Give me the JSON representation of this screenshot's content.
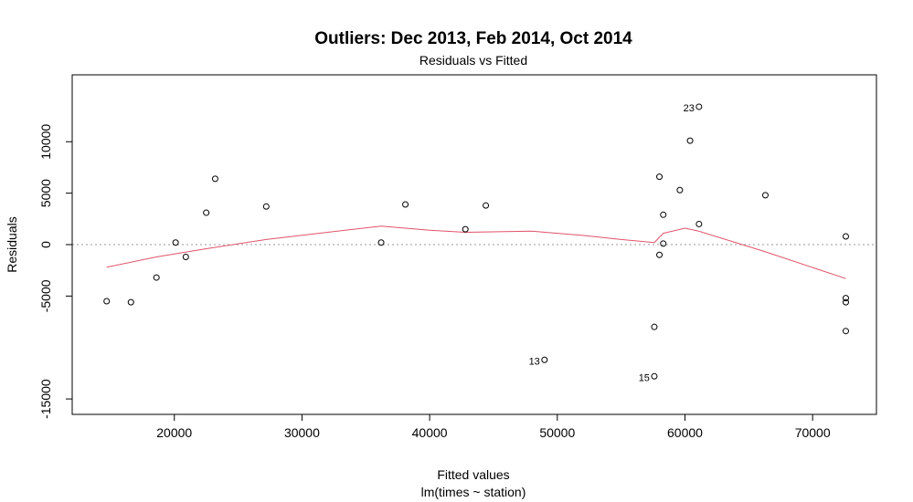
{
  "chart_data": {
    "type": "scatter",
    "title": "Outliers: Dec 2013, Feb 2014, Oct 2014",
    "subtitle": "Residuals vs Fitted",
    "xlabel": "Fitted values",
    "xlabel2": "lm(times ~ station)",
    "ylabel": "Residuals",
    "xlim": [
      12000,
      75000
    ],
    "ylim": [
      -16500,
      16500
    ],
    "x_ticks": [
      20000,
      30000,
      40000,
      50000,
      60000,
      70000
    ],
    "y_ticks": [
      -15000,
      -5000,
      0,
      5000,
      10000
    ],
    "y_tick_labels": [
      "-15000",
      "-5000",
      "0",
      "5000",
      "10000"
    ],
    "zero_line": true,
    "colors": {
      "points": "#000000",
      "smooth": "#DF536B",
      "zero_line": "#999999"
    },
    "points": [
      {
        "x": 14700,
        "y": -5500
      },
      {
        "x": 16600,
        "y": -5600
      },
      {
        "x": 18600,
        "y": -3200
      },
      {
        "x": 20100,
        "y": 200
      },
      {
        "x": 20900,
        "y": -1200
      },
      {
        "x": 22500,
        "y": 3100
      },
      {
        "x": 23200,
        "y": 6400
      },
      {
        "x": 27200,
        "y": 3700
      },
      {
        "x": 36200,
        "y": 200
      },
      {
        "x": 38100,
        "y": 3900
      },
      {
        "x": 42800,
        "y": 1500
      },
      {
        "x": 44400,
        "y": 3800
      },
      {
        "x": 49000,
        "y": -11200,
        "label": "13"
      },
      {
        "x": 57600,
        "y": -8000
      },
      {
        "x": 57600,
        "y": -12800,
        "label": "15"
      },
      {
        "x": 58000,
        "y": 6600
      },
      {
        "x": 58000,
        "y": -1000
      },
      {
        "x": 58300,
        "y": 2900
      },
      {
        "x": 58300,
        "y": 100
      },
      {
        "x": 59600,
        "y": 5300
      },
      {
        "x": 60400,
        "y": 10100
      },
      {
        "x": 61100,
        "y": 13400,
        "label": "23"
      },
      {
        "x": 61100,
        "y": 2000
      },
      {
        "x": 66300,
        "y": 4800
      },
      {
        "x": 72600,
        "y": 800
      },
      {
        "x": 72600,
        "y": -5200
      },
      {
        "x": 72600,
        "y": -5600
      },
      {
        "x": 72600,
        "y": -8400
      }
    ],
    "smooth_line": [
      {
        "x": 14700,
        "y": -2200
      },
      {
        "x": 18600,
        "y": -1200
      },
      {
        "x": 22500,
        "y": -400
      },
      {
        "x": 27200,
        "y": 500
      },
      {
        "x": 32000,
        "y": 1200
      },
      {
        "x": 36200,
        "y": 1800
      },
      {
        "x": 40000,
        "y": 1400
      },
      {
        "x": 42800,
        "y": 1200
      },
      {
        "x": 48000,
        "y": 1300
      },
      {
        "x": 52000,
        "y": 900
      },
      {
        "x": 55000,
        "y": 500
      },
      {
        "x": 57600,
        "y": 200
      },
      {
        "x": 58300,
        "y": 1100
      },
      {
        "x": 60000,
        "y": 1600
      },
      {
        "x": 61100,
        "y": 1300
      },
      {
        "x": 66300,
        "y": -700
      },
      {
        "x": 72600,
        "y": -3300
      }
    ]
  }
}
